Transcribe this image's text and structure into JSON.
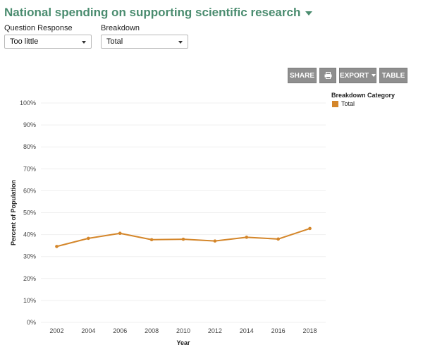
{
  "header": {
    "title": "National spending on supporting scientific research"
  },
  "controls": {
    "question_response_label": "Question Response",
    "question_response_value": "Too little",
    "breakdown_label": "Breakdown",
    "breakdown_value": "Total"
  },
  "toolbar": {
    "share_label": "SHARE",
    "export_label": "EXPORT",
    "table_label": "TABLE"
  },
  "legend": {
    "title": "Breakdown Category",
    "items": [
      {
        "label": "Total",
        "color": "#d4862a"
      }
    ]
  },
  "chart_data": {
    "type": "line",
    "xlabel": "Year",
    "ylabel": "Percent of Population",
    "x_ticks": [
      "2002",
      "2004",
      "2006",
      "2008",
      "2010",
      "2012",
      "2014",
      "2016",
      "2018"
    ],
    "y_ticks": [
      "0%",
      "10%",
      "20%",
      "30%",
      "40%",
      "50%",
      "60%",
      "70%",
      "80%",
      "90%",
      "100%"
    ],
    "xlim": [
      2001,
      2019
    ],
    "ylim": [
      0,
      100
    ],
    "grid": true,
    "legend_position": "top-right",
    "series": [
      {
        "name": "Total",
        "color": "#d4862a",
        "x": [
          2002,
          2004,
          2006,
          2008,
          2010,
          2012,
          2014,
          2016,
          2018
        ],
        "values": [
          34.6,
          38.3,
          40.6,
          37.7,
          37.9,
          37.1,
          38.8,
          38.0,
          42.8
        ]
      }
    ]
  }
}
